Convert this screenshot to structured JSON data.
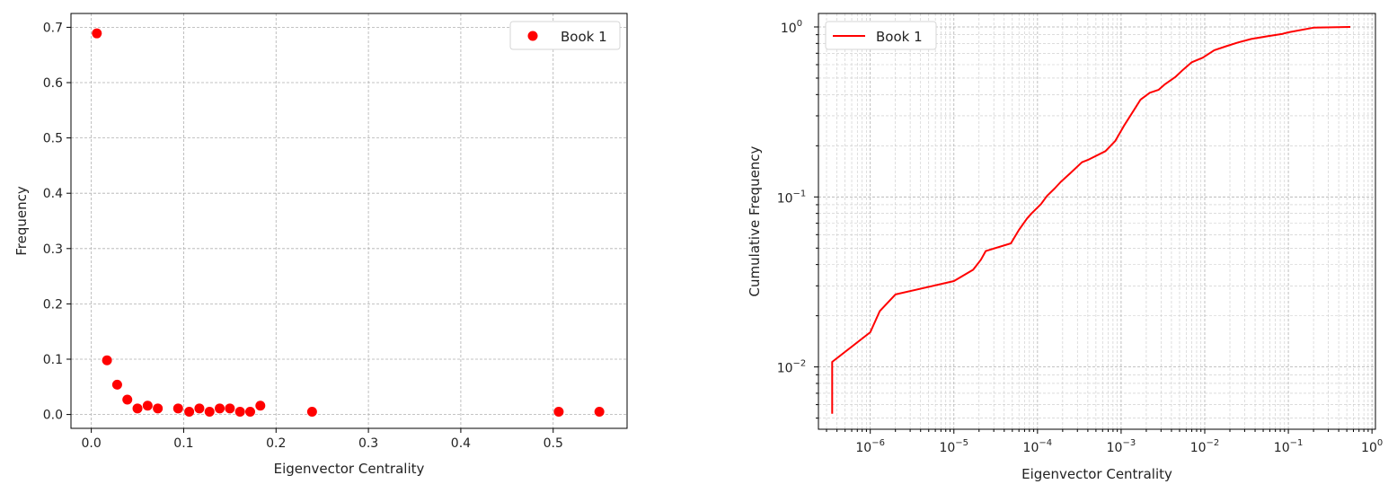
{
  "colors": {
    "series": "#ff0000",
    "grid": "#b0b0b0"
  },
  "chart_data": [
    {
      "type": "scatter",
      "title": "",
      "xlabel": "Eigenvector Centrality",
      "ylabel": "Frequency",
      "xlim": [
        -0.022,
        0.58
      ],
      "ylim": [
        -0.025,
        0.725
      ],
      "xticks": [
        0,
        0.1,
        0.2,
        0.3,
        0.4,
        0.5
      ],
      "xtick_labels": [
        "0.0",
        "0.1",
        "0.2",
        "0.3",
        "0.4",
        "0.5"
      ],
      "yticks": [
        0,
        0.1,
        0.2,
        0.3,
        0.4,
        0.5,
        0.6,
        0.7
      ],
      "ytick_labels": [
        "0.0",
        "0.1",
        "0.2",
        "0.3",
        "0.4",
        "0.5",
        "0.6",
        "0.7"
      ],
      "grid": true,
      "legend_position": "top-right",
      "series": [
        {
          "name": "Book 1",
          "color": "#ff0000",
          "x": [
            0.006,
            0.017,
            0.028,
            0.039,
            0.05,
            0.061,
            0.072,
            0.094,
            0.106,
            0.117,
            0.128,
            0.139,
            0.15,
            0.161,
            0.172,
            0.183,
            0.239,
            0.506,
            0.55
          ],
          "y": [
            0.689,
            0.098,
            0.054,
            0.027,
            0.011,
            0.016,
            0.011,
            0.011,
            0.005,
            0.011,
            0.005,
            0.011,
            0.011,
            0.005,
            0.005,
            0.016,
            0.005,
            0.005,
            0.005
          ]
        }
      ]
    },
    {
      "type": "line",
      "title": "",
      "xlabel": "Eigenvector Centrality",
      "ylabel": "Cumulative Frequency",
      "xscale": "log",
      "yscale": "log",
      "xlim": [
        2.4e-07,
        1.1
      ],
      "ylim": [
        0.0043,
        1.2
      ],
      "xticks": [
        1e-06,
        1e-05,
        0.0001,
        0.001,
        0.01,
        0.1,
        1
      ],
      "xtick_labels": [
        {
          "base": "10",
          "exp": "−6"
        },
        {
          "base": "10",
          "exp": "−5"
        },
        {
          "base": "10",
          "exp": "−4"
        },
        {
          "base": "10",
          "exp": "−3"
        },
        {
          "base": "10",
          "exp": "−2"
        },
        {
          "base": "10",
          "exp": "−1"
        },
        {
          "base": "10",
          "exp": "0"
        }
      ],
      "yticks": [
        0.01,
        0.1,
        1
      ],
      "ytick_labels": [
        {
          "base": "10",
          "exp": "−2"
        },
        {
          "base": "10",
          "exp": "−1"
        },
        {
          "base": "10",
          "exp": "0"
        }
      ],
      "grid": true,
      "legend_position": "top-left",
      "series": [
        {
          "name": "Book 1",
          "color": "#ff0000",
          "x": [
            3.5e-07,
            3.5e-07,
            1e-06,
            1.3e-06,
            2e-06,
            1e-05,
            1.7e-05,
            2.1e-05,
            2.4e-05,
            4.8e-05,
            6e-05,
            7.5e-05,
            8.5e-05,
            0.00011,
            0.00013,
            0.00016,
            0.00019,
            0.00025,
            0.00034,
            0.0004,
            0.00065,
            0.00085,
            0.0011,
            0.0014,
            0.0017,
            0.0022,
            0.0028,
            0.0033,
            0.0045,
            0.0055,
            0.007,
            0.0095,
            0.013,
            0.018,
            0.025,
            0.036,
            0.055,
            0.085,
            0.1,
            0.2,
            0.55
          ],
          "y": [
            0.0053,
            0.0107,
            0.016,
            0.0213,
            0.0267,
            0.032,
            0.0373,
            0.0427,
            0.048,
            0.0533,
            0.064,
            0.0747,
            0.08,
            0.0907,
            0.1013,
            0.112,
            0.1227,
            0.1387,
            0.16,
            0.165,
            0.186,
            0.213,
            0.266,
            0.32,
            0.373,
            0.41,
            0.426,
            0.458,
            0.51,
            0.56,
            0.62,
            0.66,
            0.73,
            0.77,
            0.81,
            0.85,
            0.88,
            0.91,
            0.93,
            0.99,
            1.0
          ]
        }
      ]
    }
  ]
}
